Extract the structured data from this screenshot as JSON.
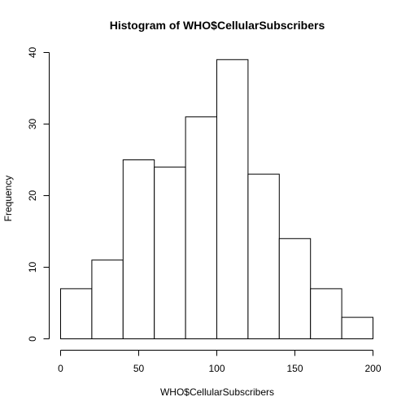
{
  "chart_data": {
    "type": "bar",
    "title": "Histogram of WHO$CellularSubscribers",
    "xlabel": "WHO$CellularSubscribers",
    "ylabel": "Frequency",
    "bins": [
      {
        "start": 0,
        "end": 20,
        "count": 7
      },
      {
        "start": 20,
        "end": 40,
        "count": 11
      },
      {
        "start": 40,
        "end": 60,
        "count": 25
      },
      {
        "start": 60,
        "end": 80,
        "count": 24
      },
      {
        "start": 80,
        "end": 100,
        "count": 31
      },
      {
        "start": 100,
        "end": 120,
        "count": 39
      },
      {
        "start": 120,
        "end": 140,
        "count": 23
      },
      {
        "start": 140,
        "end": 160,
        "count": 14
      },
      {
        "start": 160,
        "end": 180,
        "count": 7
      },
      {
        "start": 180,
        "end": 200,
        "count": 3
      }
    ],
    "xlim": [
      0,
      200
    ],
    "ylim": [
      0,
      40
    ],
    "x_ticks": [
      0,
      50,
      100,
      150,
      200
    ],
    "y_ticks": [
      0,
      10,
      20,
      30,
      40
    ],
    "grid": false,
    "legend": "none"
  }
}
